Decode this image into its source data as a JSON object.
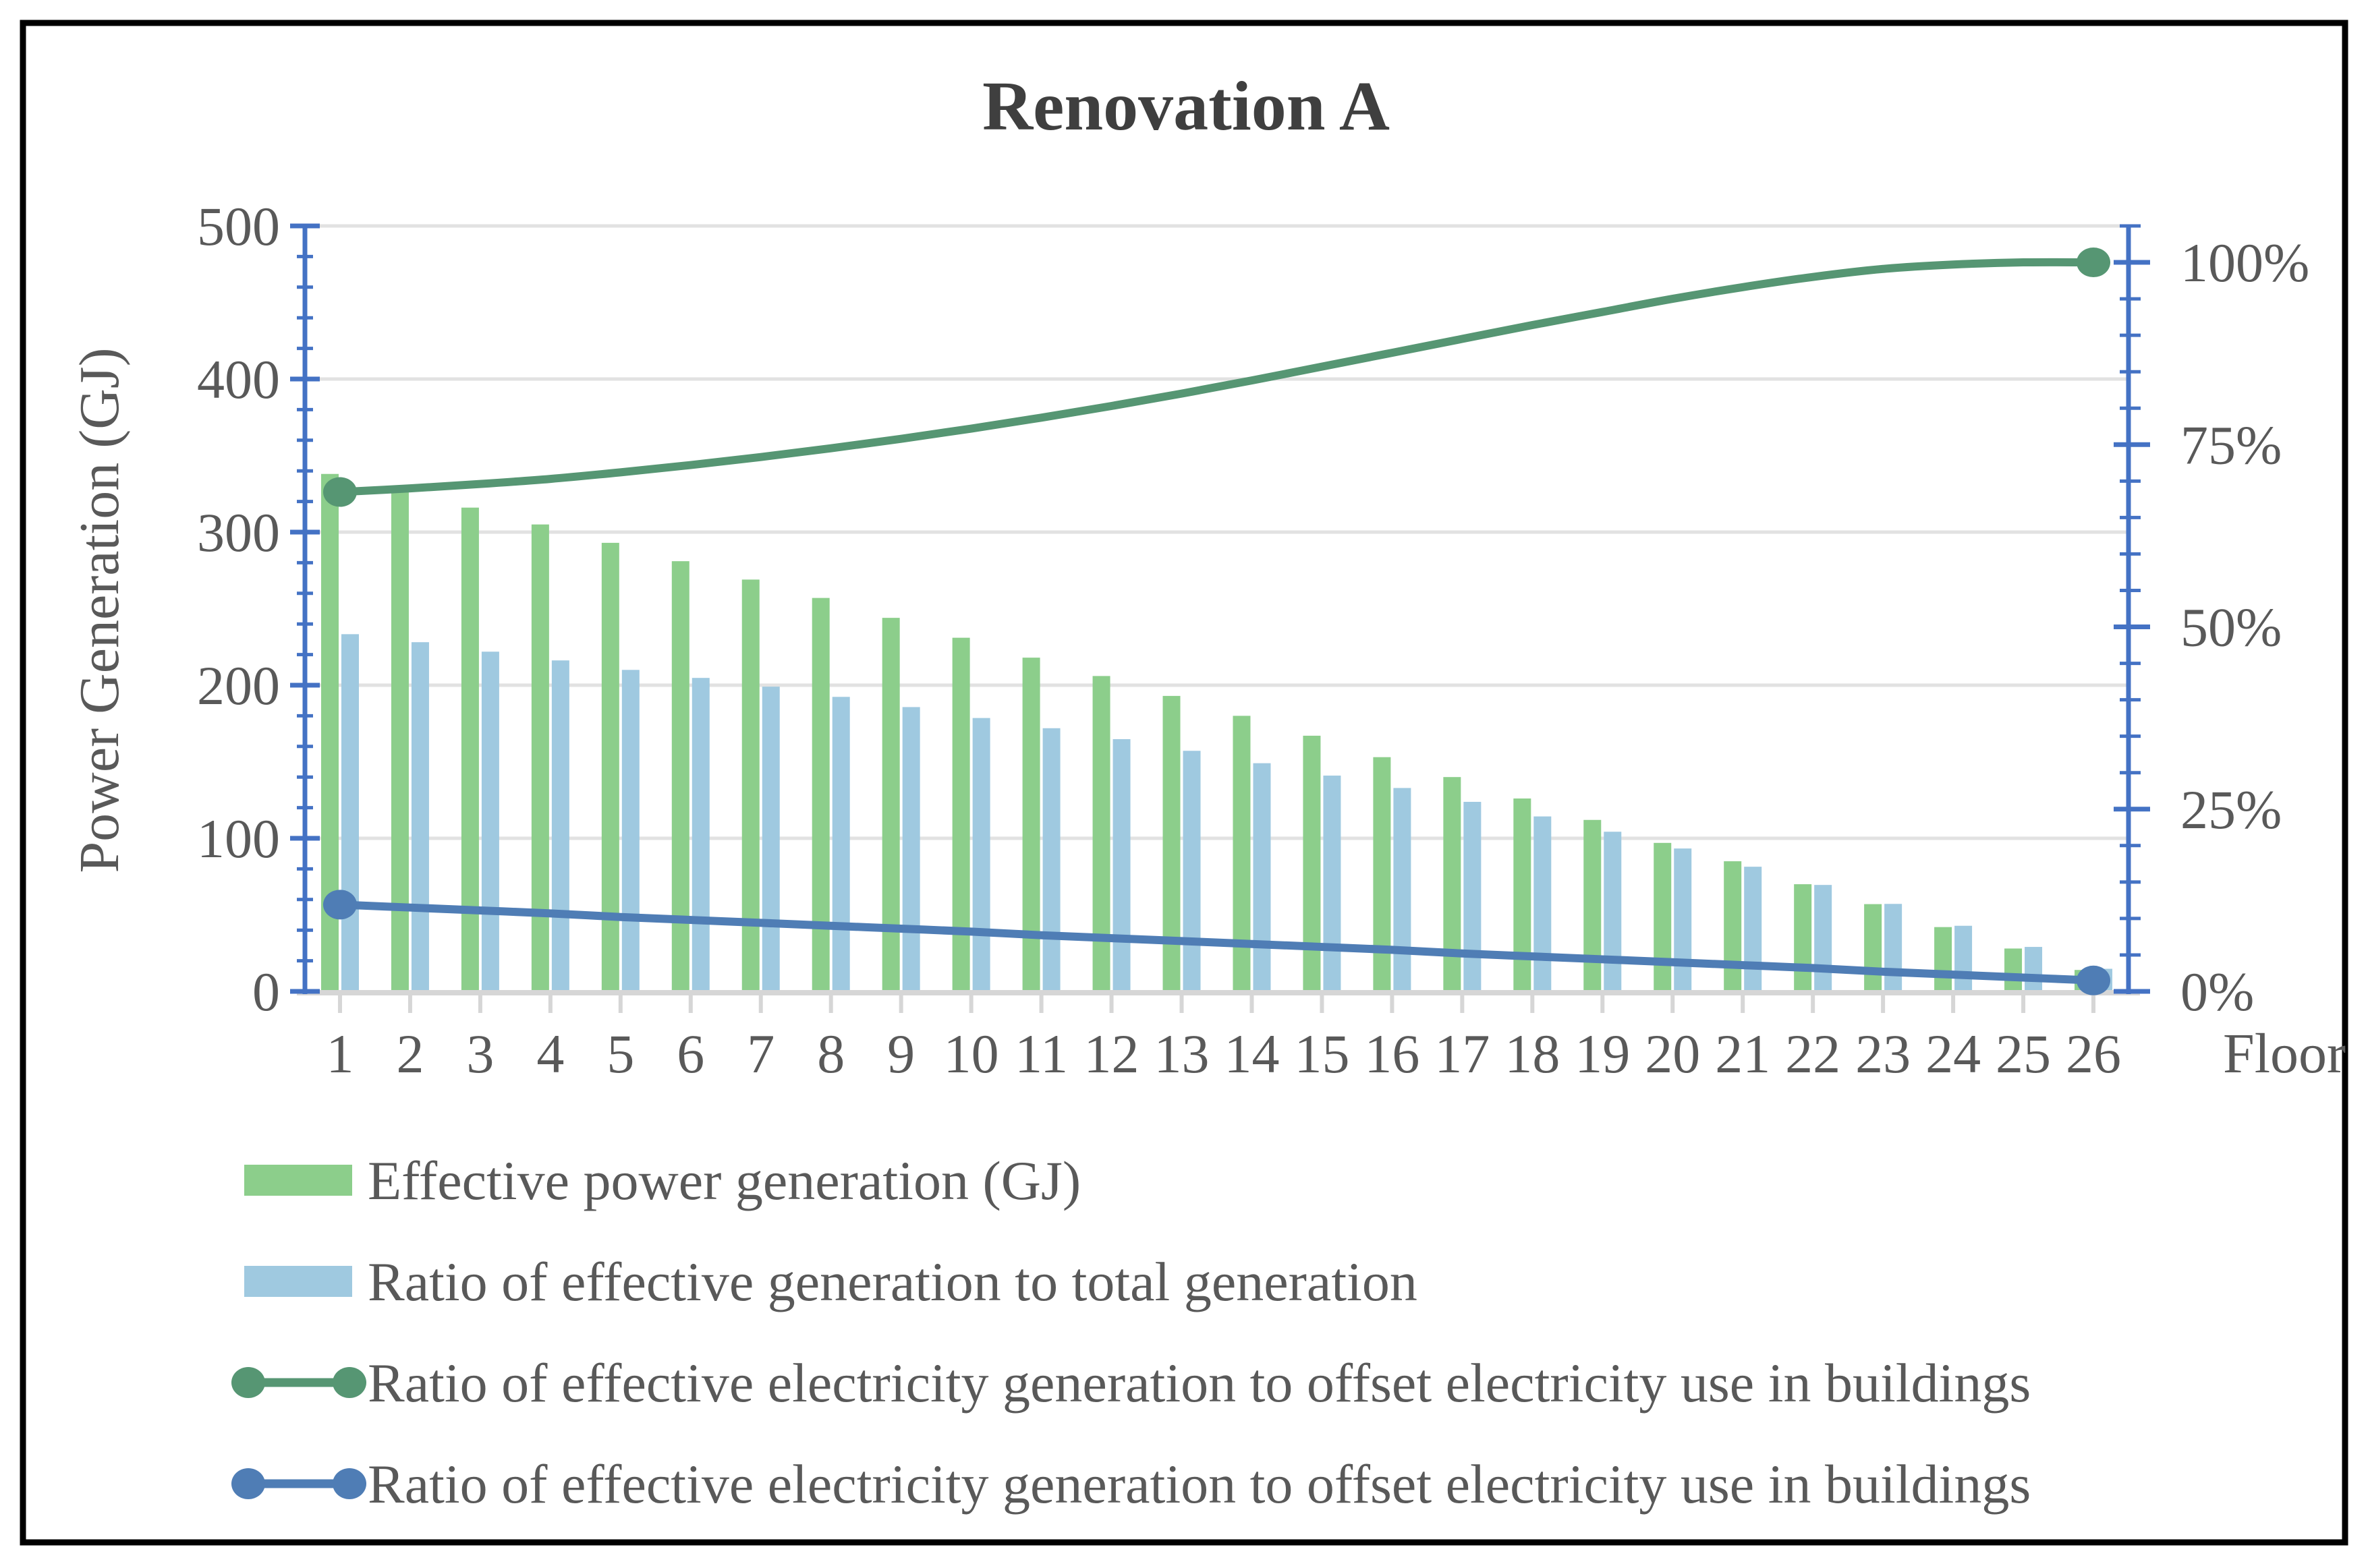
{
  "page": {
    "background_color": "#ffffff",
    "border_color": "#000000"
  },
  "chart_data": {
    "type": "combo",
    "title": "Renovation A",
    "xlabel": "Floor",
    "ylabel_left": "Power Generation (GJ)",
    "categories": [
      1,
      2,
      3,
      4,
      5,
      6,
      7,
      8,
      9,
      10,
      11,
      12,
      13,
      14,
      15,
      16,
      17,
      18,
      19,
      20,
      21,
      22,
      23,
      24,
      25,
      26
    ],
    "axes": {
      "left": {
        "min": 0,
        "max": 500,
        "major_step": 100,
        "minor_step": 20,
        "tick_labels": [
          "0",
          "100",
          "200",
          "300",
          "400",
          "500"
        ],
        "tick_values": [
          0,
          100,
          200,
          300,
          400,
          500
        ]
      },
      "right": {
        "min": 0,
        "max": 105,
        "major_step": 25,
        "minor_step": 5,
        "tick_labels": [
          "0%",
          "25%",
          "50%",
          "75%",
          "100%"
        ],
        "tick_values": [
          0,
          25,
          50,
          75,
          100
        ]
      }
    },
    "grid": "horizontal-major",
    "legend_position": "bottom-left",
    "series": [
      {
        "name": "Effective power generation (GJ)",
        "type": "bar",
        "axis": "left",
        "unit": "GJ",
        "color": "#8cce8b",
        "values": [
          338,
          327,
          316,
          305,
          293,
          281,
          269,
          257,
          244,
          231,
          218,
          206,
          193,
          180,
          167,
          153,
          140,
          126,
          112,
          97,
          85,
          70,
          57,
          42,
          28,
          14
        ]
      },
      {
        "name": "Ratio of effective generation to total generation",
        "type": "bar",
        "axis": "right",
        "unit": "%",
        "color": "#9fc9e0",
        "values": [
          49.0,
          47.9,
          46.6,
          45.4,
          44.1,
          43.0,
          41.8,
          40.4,
          39.0,
          37.5,
          36.1,
          34.6,
          33.0,
          31.3,
          29.6,
          27.9,
          26.0,
          24.0,
          21.9,
          19.6,
          17.1,
          14.6,
          12.0,
          9.0,
          6.1,
          3.1
        ]
      },
      {
        "name": "Ratio of effective electricity generation to offset electricity use in buildings",
        "type": "line",
        "axis": "right",
        "unit": "%",
        "color": "#569673",
        "markers": "endpoints",
        "values": [
          68.5,
          69.0,
          69.6,
          70.3,
          71.2,
          72.2,
          73.3,
          74.5,
          75.8,
          77.2,
          78.7,
          80.3,
          82.0,
          83.8,
          85.7,
          87.6,
          89.5,
          91.4,
          93.2,
          95.0,
          96.6,
          98.0,
          99.1,
          99.7,
          100.0,
          100.0
        ]
      },
      {
        "name": "Ratio of effective electricity generation to offset electricity use in buildings",
        "type": "line",
        "axis": "right",
        "unit": "%",
        "color": "#4f7db5",
        "markers": "endpoints",
        "values": [
          11.9,
          11.5,
          11.1,
          10.7,
          10.2,
          9.8,
          9.4,
          9.0,
          8.6,
          8.2,
          7.7,
          7.3,
          6.9,
          6.5,
          6.1,
          5.7,
          5.2,
          4.8,
          4.4,
          4.0,
          3.6,
          3.2,
          2.7,
          2.3,
          1.9,
          1.5
        ]
      }
    ],
    "colors": {
      "axis_line": "#4472c4",
      "category_axis_line": "#d6d6d6",
      "gridline": "#e2e2e2",
      "text": "#595959",
      "title_text": "#3f3f3f"
    }
  },
  "legend": {
    "items": [
      {
        "label": "Effective power generation (GJ)",
        "swatch": "bar",
        "color": "#8cce8b"
      },
      {
        "label": "Ratio of effective generation to total generation",
        "swatch": "bar",
        "color": "#9fc9e0"
      },
      {
        "label": "Ratio of effective electricity generation to offset electricity use in buildings",
        "swatch": "line",
        "color": "#569673"
      },
      {
        "label": "Ratio of effective electricity generation to offset electricity use in buildings",
        "swatch": "line",
        "color": "#4f7db5"
      }
    ]
  }
}
